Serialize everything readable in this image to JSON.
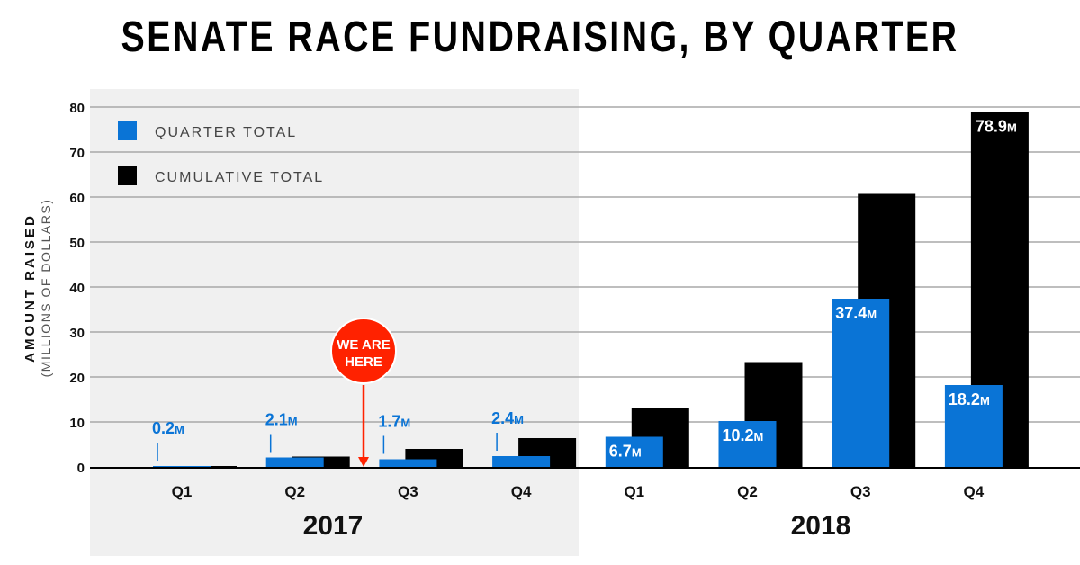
{
  "chart_data": {
    "type": "bar",
    "title": "SENATE RACE FUNDRAISING, BY QUARTER",
    "ylabel": "AMOUNT RAISED",
    "ylabel_sub": "(MILLIONS OF DOLLARS)",
    "ylim": [
      0,
      80
    ],
    "yticks": [
      0,
      10,
      20,
      30,
      40,
      50,
      60,
      70,
      80
    ],
    "grid": true,
    "legend_position": "top-left",
    "categories": [
      "Q1",
      "Q2",
      "Q3",
      "Q4",
      "Q1",
      "Q2",
      "Q3",
      "Q4"
    ],
    "years": [
      {
        "label": "2017",
        "shaded": true
      },
      {
        "label": "2018",
        "shaded": false
      }
    ],
    "series": [
      {
        "name": "QUARTER TOTAL",
        "color": "#0a74d6",
        "values": [
          0.2,
          2.1,
          1.7,
          2.4,
          6.7,
          10.2,
          37.4,
          18.2
        ],
        "labels": [
          "0.2",
          "2.1",
          "1.7",
          "2.4",
          "6.7",
          "10.2",
          "37.4",
          "18.2"
        ]
      },
      {
        "name": "CUMULATIVE TOTAL",
        "color": "#000000",
        "values": [
          0.2,
          2.3,
          4.0,
          6.4,
          13.1,
          23.3,
          60.7,
          78.9
        ],
        "labels": [
          "",
          "",
          "",
          "",
          "",
          "",
          "",
          "78.9"
        ]
      }
    ],
    "label_unit": "M",
    "annotation": {
      "text_lines": [
        "WE ARE",
        "HERE"
      ],
      "color": "#ff2200",
      "position_between": [
        1,
        2
      ]
    }
  }
}
